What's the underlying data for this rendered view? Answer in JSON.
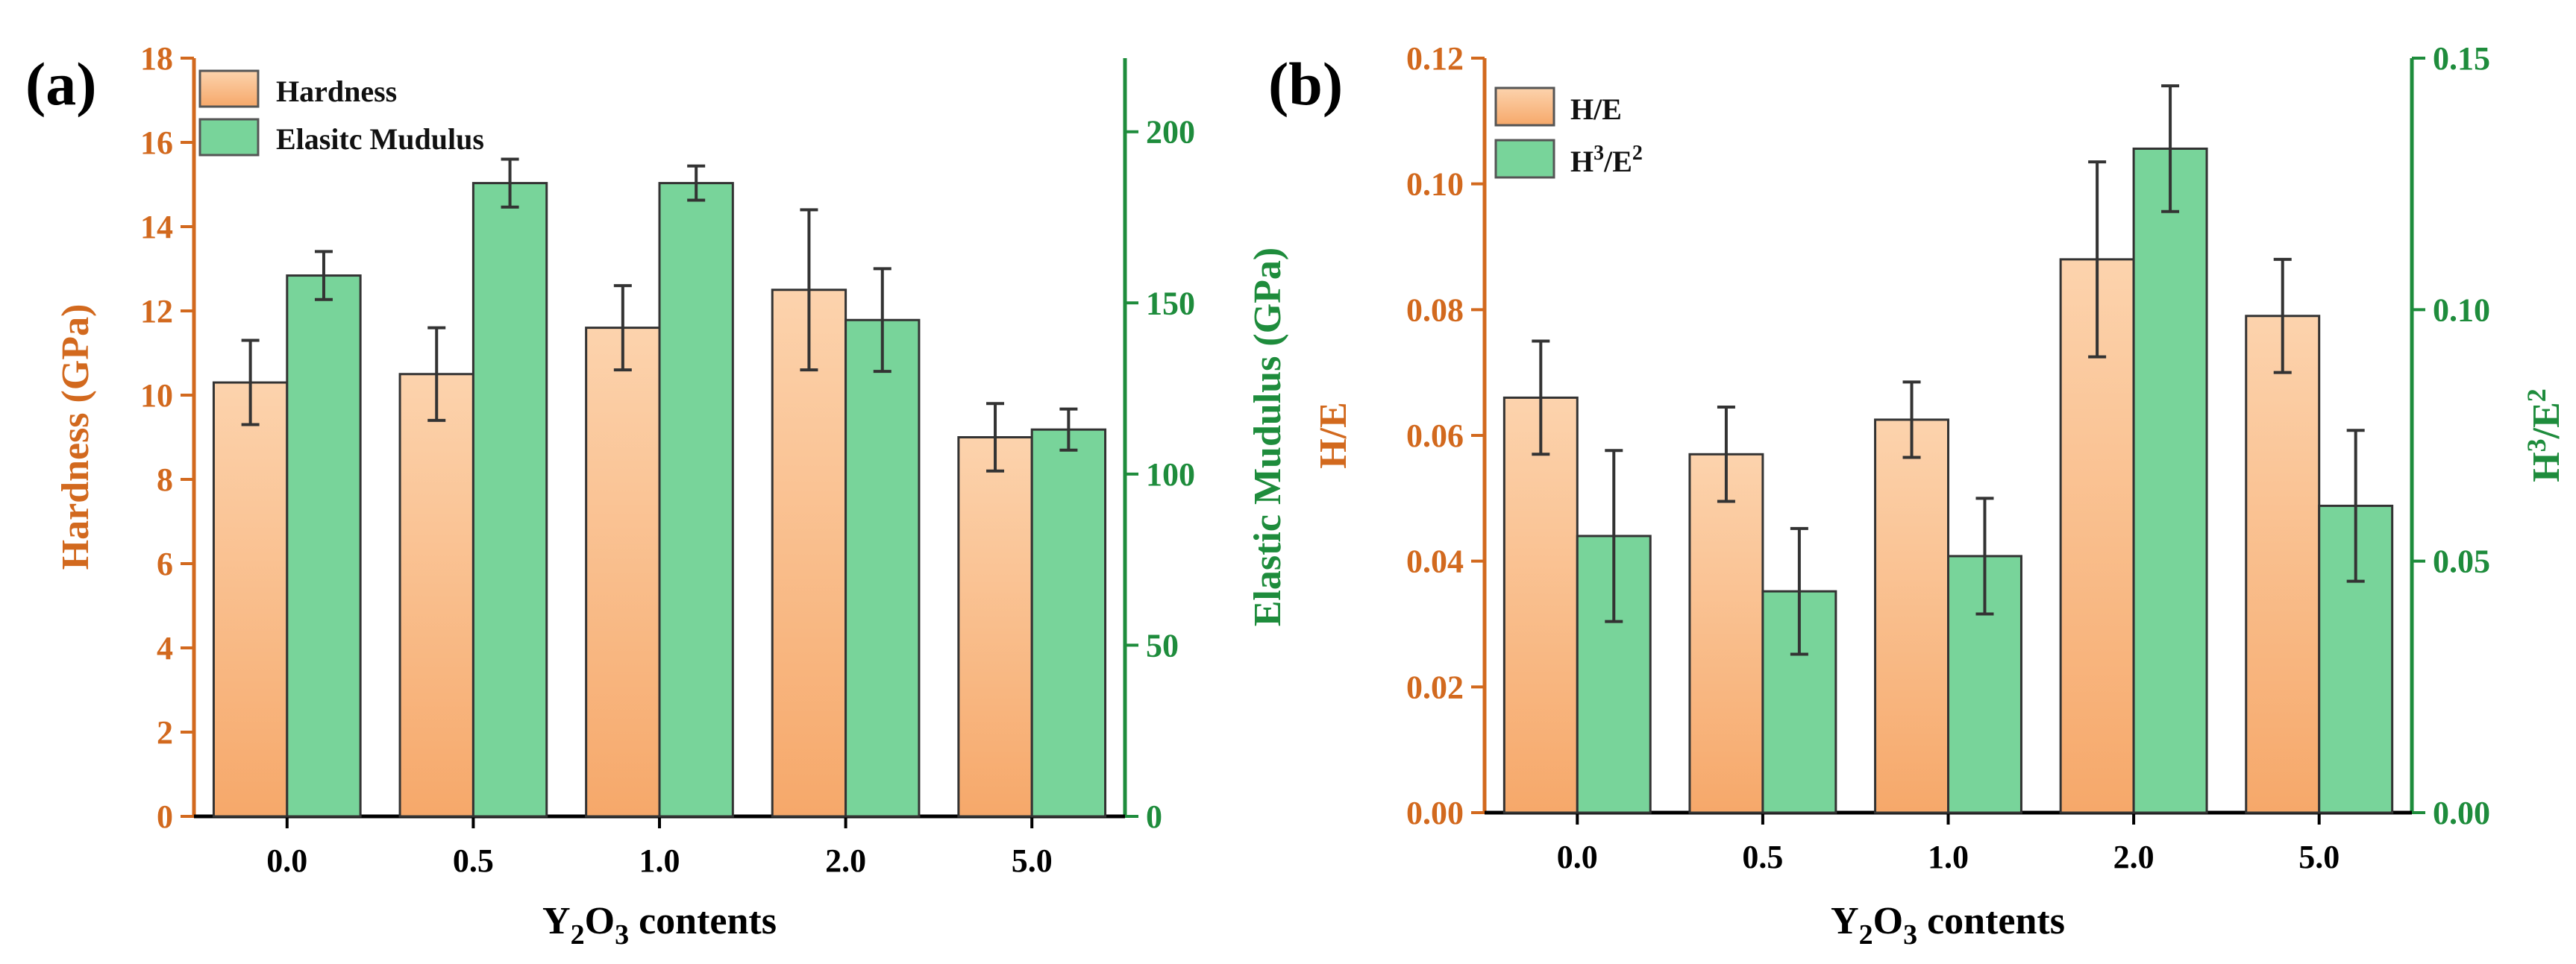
{
  "colors": {
    "left_axis": "#d2691e",
    "right_axis": "#1e8c3c",
    "bar_left_top": "#fcd3ad",
    "bar_left_bottom": "#f6a86a",
    "bar_right": "#78d49a",
    "x_axis": "#000000"
  },
  "chart_data": [
    {
      "type": "bar",
      "panel_label": "(a)",
      "categories": [
        "0.0",
        "0.5",
        "1.0",
        "2.0",
        "5.0"
      ],
      "xlabel_parts": {
        "base1": "Y",
        "sub1": "2",
        "base2": "O",
        "sub2": "3",
        "rest": " contents"
      },
      "left_axis": {
        "label": "Hardness (GPa)",
        "ylim": [
          0,
          18
        ],
        "ticks": [
          "0",
          "2",
          "4",
          "6",
          "8",
          "10",
          "12",
          "14",
          "16",
          "18"
        ]
      },
      "right_axis": {
        "label": "Elastic Mudulus (GPa)",
        "ylim": [
          0,
          221.5
        ],
        "ticks": [
          "0",
          "50",
          "100",
          "150",
          "200"
        ],
        "tick_values": [
          0,
          50,
          100,
          150,
          200
        ]
      },
      "series": [
        {
          "name": "Hardness",
          "axis": "left",
          "values": [
            10.3,
            10.5,
            11.6,
            12.5,
            9.0
          ],
          "errors": [
            1.0,
            1.1,
            1.0,
            1.9,
            0.8
          ]
        },
        {
          "name": "Elasitc Mudulus",
          "axis": "right",
          "values": [
            158,
            185,
            185,
            145,
            113
          ],
          "errors": [
            7,
            7,
            5,
            15,
            6
          ]
        }
      ],
      "legend": {
        "entries": [
          "Hardness",
          "Elasitc Mudulus"
        ],
        "placement": "top-left"
      }
    },
    {
      "type": "bar",
      "panel_label": "(b)",
      "categories": [
        "0.0",
        "0.5",
        "1.0",
        "2.0",
        "5.0"
      ],
      "xlabel_parts": {
        "base1": "Y",
        "sub1": "2",
        "base2": "O",
        "sub2": "3",
        "rest": " contents"
      },
      "left_axis": {
        "label": "H/E",
        "ylim": [
          0,
          0.12
        ],
        "ticks": [
          "0.00",
          "0.02",
          "0.04",
          "0.06",
          "0.08",
          "0.10",
          "0.12"
        ]
      },
      "right_axis": {
        "label_parts": {
          "base1": "H",
          "sup1": "3",
          "base2": "/E",
          "sup2": "2"
        },
        "ylim": [
          0,
          0.15
        ],
        "ticks": [
          "0.00",
          "0.05",
          "0.10",
          "0.15"
        ],
        "tick_values": [
          0,
          0.05,
          0.1,
          0.15
        ]
      },
      "series": [
        {
          "name": "H/E",
          "axis": "left",
          "values": [
            0.066,
            0.057,
            0.0625,
            0.088,
            0.079
          ],
          "errors": [
            0.009,
            0.0075,
            0.006,
            0.0155,
            0.009
          ]
        },
        {
          "name": "H3/E2",
          "axis": "right",
          "values": [
            0.055,
            0.044,
            0.051,
            0.132,
            0.061
          ],
          "errors": [
            0.017,
            0.0125,
            0.0115,
            0.0125,
            0.015
          ]
        }
      ],
      "legend": {
        "entries": [
          "H/E"
        ],
        "entry2_parts": {
          "base1": "H",
          "sup1": "3",
          "base2": "/E",
          "sup2": "2"
        },
        "placement": "top-left"
      }
    }
  ]
}
